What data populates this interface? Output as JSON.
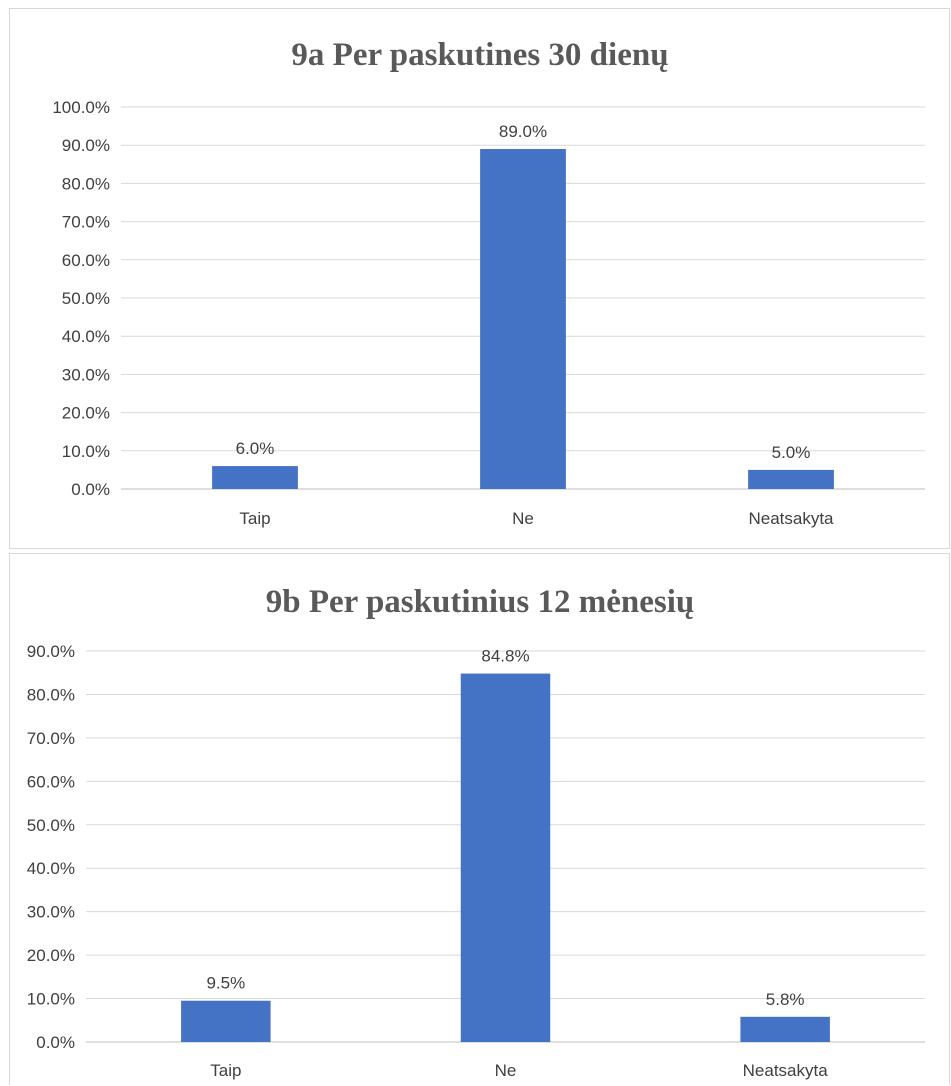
{
  "chart_data": [
    {
      "type": "bar",
      "title": "9a Per paskutines 30 dienų",
      "categories": [
        "Taip",
        "Ne",
        "Neatsakyta"
      ],
      "values": [
        6.0,
        89.0,
        5.0
      ],
      "data_labels": [
        "6.0%",
        "89.0%",
        "5.0%"
      ],
      "ylim": [
        0,
        100
      ],
      "yticks": [
        "0.0%",
        "10.0%",
        "20.0%",
        "30.0%",
        "40.0%",
        "50.0%",
        "60.0%",
        "70.0%",
        "80.0%",
        "90.0%",
        "100.0%"
      ],
      "grid": true,
      "bar_color": "#4472c4"
    },
    {
      "type": "bar",
      "title": "9b Per paskutinius 12 mėnesių",
      "categories": [
        "Taip",
        "Ne",
        "Neatsakyta"
      ],
      "values": [
        9.5,
        84.8,
        5.8
      ],
      "data_labels": [
        "9.5%",
        "84.8%",
        "5.8%"
      ],
      "ylim": [
        0,
        90
      ],
      "yticks": [
        "0.0%",
        "10.0%",
        "20.0%",
        "30.0%",
        "40.0%",
        "50.0%",
        "60.0%",
        "70.0%",
        "80.0%",
        "90.0%"
      ],
      "grid": true,
      "bar_color": "#4472c4"
    }
  ]
}
